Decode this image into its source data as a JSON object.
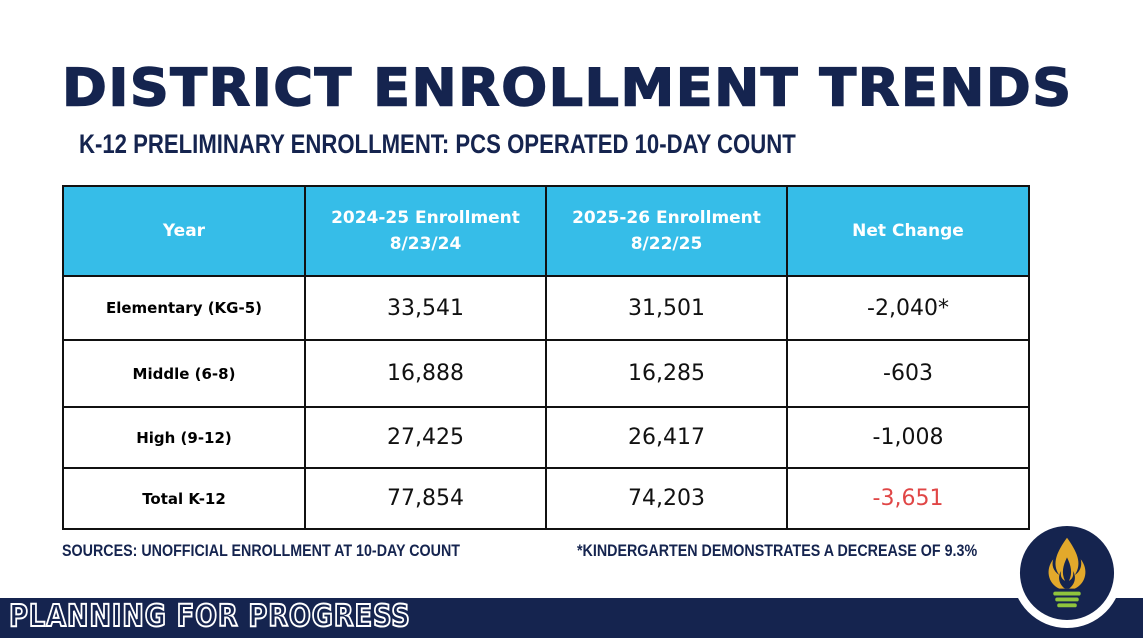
{
  "title": "DISTRICT ENROLLMENT TRENDS",
  "subtitle": "K-12 PRELIMINARY ENROLLMENT: PCS OPERATED 10-DAY COUNT",
  "table": {
    "headers": {
      "year": "Year",
      "col2024_line1": "2024-25 Enrollment",
      "col2024_line2": "8/23/24",
      "col2025_line1": "2025-26 Enrollment",
      "col2025_line2": "8/22/25",
      "net": "Net Change"
    },
    "rows": [
      {
        "label": "Elementary (KG-5)",
        "y2024": "33,541",
        "y2025": "31,501",
        "net": "-2,040*"
      },
      {
        "label": "Middle (6-8)",
        "y2024": "16,888",
        "y2025": "16,285",
        "net": "-603"
      },
      {
        "label": "High (9-12)",
        "y2024": "27,425",
        "y2025": "26,417",
        "net": "-1,008"
      },
      {
        "label": "Total K-12",
        "y2024": "77,854",
        "y2025": "74,203",
        "net": "-3,651"
      }
    ]
  },
  "footnotes": {
    "sources": "SOURCES: UNOFFICIAL ENROLLMENT AT 10-DAY COUNT",
    "kindergarten": "*KINDERGARTEN DEMONSTRATES A DECREASE OF 9.3%"
  },
  "footer": {
    "text": "PLANNING FOR PROGRESS"
  },
  "logo": {
    "icon": "torch-flame-icon"
  },
  "colors": {
    "navy": "#15244f",
    "header_blue": "#36bde8",
    "negative_red": "#e04646",
    "logo_gold": "#e3a92b",
    "logo_green": "#8fc43d"
  }
}
